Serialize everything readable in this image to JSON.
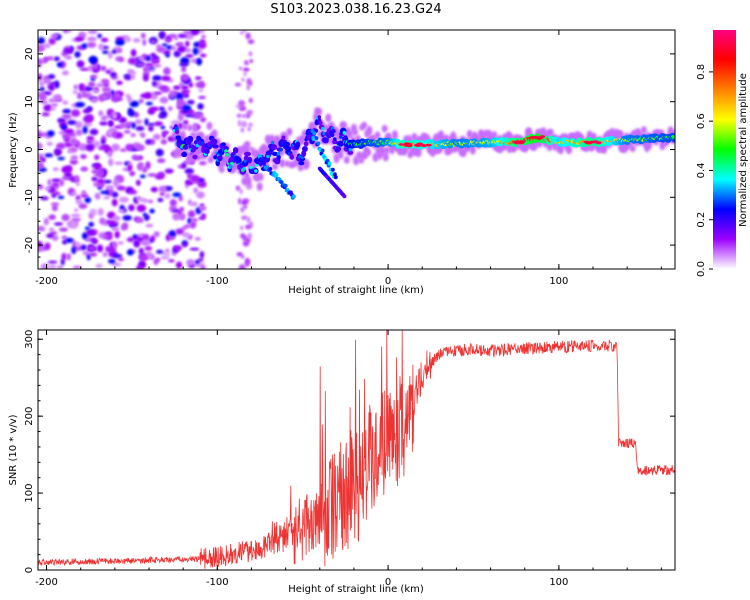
{
  "figure": {
    "title": "S103.2023.038.16.23.G24"
  },
  "chart_data": [
    {
      "type": "heatmap",
      "name": "spectrogram",
      "xlabel": "Height of straight line (km)",
      "ylabel": "Frequency (Hz)",
      "xlim": [
        -205,
        168
      ],
      "ylim": [
        -25,
        25
      ],
      "xticks": [
        -200,
        -100,
        0,
        100
      ],
      "yticks": [
        -20,
        -10,
        0,
        10,
        20
      ],
      "colorbar": {
        "label": "Normalized spectral amplitude",
        "range": [
          0,
          0.97
        ],
        "ticks": [
          0.0,
          0.2,
          0.4,
          0.6,
          0.8
        ],
        "tick_labels": [
          "0.0",
          "0.2",
          "0.4",
          "0.6",
          "0.8"
        ],
        "colormap": [
          "#ffffff",
          "#9c00ff",
          "#0000ff",
          "#00ffff",
          "#00ff00",
          "#ffff00",
          "#ff8000",
          "#ff0000",
          "#ff0080"
        ]
      },
      "ridge": [
        {
          "x": -120,
          "f": 0.5,
          "a": 0.35
        },
        {
          "x": -105,
          "f": 0.8,
          "a": 0.45
        },
        {
          "x": -95,
          "f": -1.5,
          "a": 0.5
        },
        {
          "x": -85,
          "f": -3.0,
          "a": 0.5
        },
        {
          "x": -75,
          "f": -3.5,
          "a": 0.45
        },
        {
          "x": -70,
          "f": -1.0,
          "a": 0.45
        },
        {
          "x": -60,
          "f": 0.5,
          "a": 0.4
        },
        {
          "x": -50,
          "f": -1.0,
          "a": 0.45
        },
        {
          "x": -42,
          "f": 5.5,
          "a": 0.4
        },
        {
          "x": -38,
          "f": 4.0,
          "a": 0.4
        },
        {
          "x": -30,
          "f": 2.0,
          "a": 0.45
        },
        {
          "x": -20,
          "f": 1.0,
          "a": 0.5
        },
        {
          "x": -10,
          "f": 1.5,
          "a": 0.55
        },
        {
          "x": 0,
          "f": 1.5,
          "a": 0.6
        },
        {
          "x": 10,
          "f": 1.0,
          "a": 0.8
        },
        {
          "x": 20,
          "f": 1.0,
          "a": 0.75
        },
        {
          "x": 40,
          "f": 1.2,
          "a": 0.6
        },
        {
          "x": 60,
          "f": 1.5,
          "a": 0.65
        },
        {
          "x": 75,
          "f": 1.5,
          "a": 0.85
        },
        {
          "x": 88,
          "f": 2.5,
          "a": 0.95
        },
        {
          "x": 100,
          "f": 1.5,
          "a": 0.7
        },
        {
          "x": 120,
          "f": 1.5,
          "a": 0.85
        },
        {
          "x": 140,
          "f": 2.0,
          "a": 0.6
        },
        {
          "x": 166,
          "f": 2.5,
          "a": 0.55
        }
      ]
    },
    {
      "type": "line",
      "name": "snr",
      "xlabel": "Height of straight line (km)",
      "ylabel": "SNR (10 * v/v)",
      "xlim": [
        -205,
        168
      ],
      "ylim": [
        0,
        312
      ],
      "xticks": [
        -200,
        -100,
        0,
        100
      ],
      "yticks": [
        0,
        100,
        200,
        300
      ],
      "color": "#ee3333",
      "series": [
        {
          "name": "SNR",
          "x": [
            -205,
            -150,
            -120,
            -105,
            -90,
            -75,
            -65,
            -55,
            -45,
            -35,
            -25,
            -15,
            -10,
            0,
            10,
            20,
            30,
            40,
            50,
            60,
            80,
            100,
            120,
            134,
            135,
            145,
            146,
            168
          ],
          "y": [
            10,
            12,
            14,
            15,
            22,
            25,
            45,
            50,
            60,
            80,
            100,
            115,
            150,
            170,
            190,
            255,
            280,
            285,
            287,
            285,
            288,
            290,
            292,
            292,
            165,
            165,
            130,
            130
          ]
        }
      ]
    }
  ]
}
